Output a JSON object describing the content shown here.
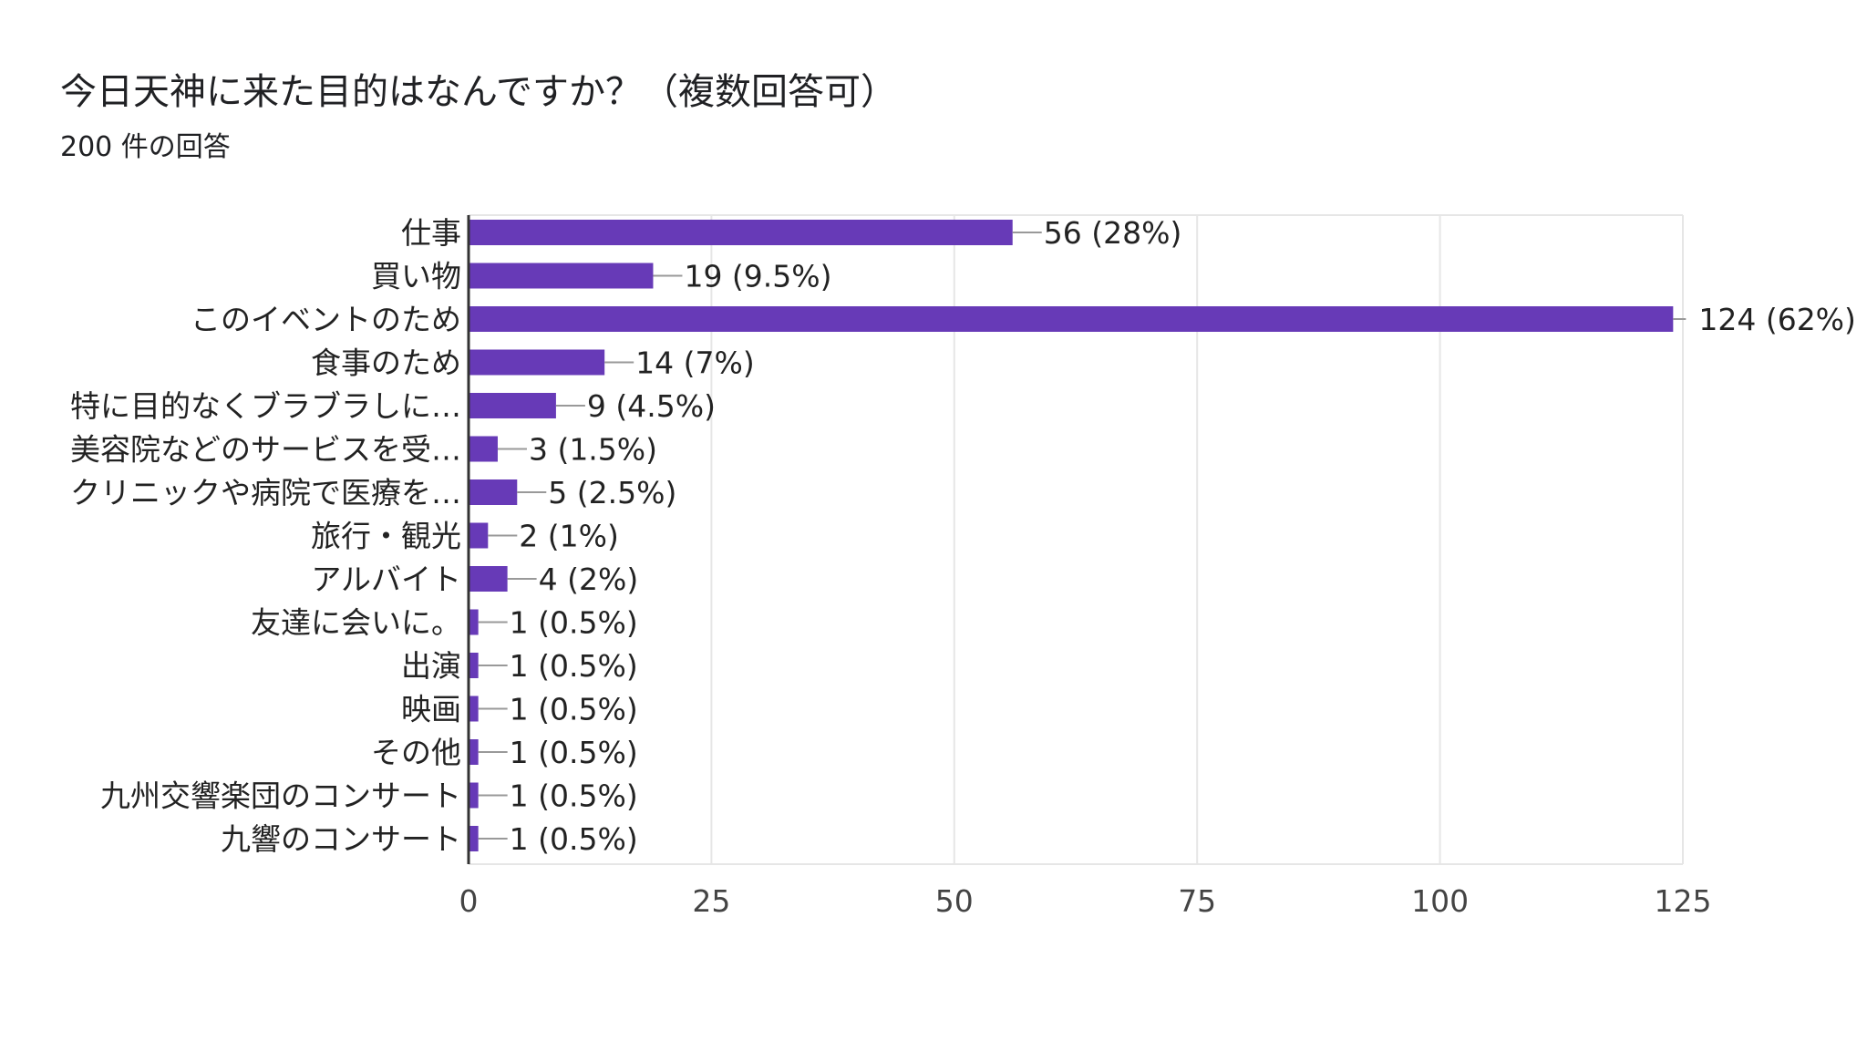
{
  "title": "今日天神に来た目的はなんですか？（複数回答可）",
  "subtitle": "200 件の回答",
  "colors": {
    "bar": "#673ab7",
    "grid": "#e6e6e6",
    "axis": "#333333",
    "leader": "#999999"
  },
  "chart_data": {
    "type": "bar",
    "orientation": "horizontal",
    "title": "今日天神に来た目的はなんですか？（複数回答可）",
    "subtitle": "200 件の回答",
    "categories": [
      "仕事",
      "買い物",
      "このイベントのため",
      "食事のため",
      "特に目的なくブラブラしに…",
      "美容院などのサービスを受…",
      "クリニックや病院で医療を…",
      "旅行・観光",
      "アルバイト",
      "友達に会いに。",
      "出演",
      "映画",
      "その他",
      "九州交響楽団のコンサート",
      "九響のコンサート"
    ],
    "values": [
      56,
      19,
      124,
      14,
      9,
      3,
      5,
      2,
      4,
      1,
      1,
      1,
      1,
      1,
      1
    ],
    "value_labels": [
      "56 (28%)",
      "19 (9.5%)",
      "124 (62%)",
      "14 (7%)",
      "9 (4.5%)",
      "3 (1.5%)",
      "5 (2.5%)",
      "2 (1%)",
      "4 (2%)",
      "1 (0.5%)",
      "1 (0.5%)",
      "1 (0.5%)",
      "1 (0.5%)",
      "1 (0.5%)",
      "1 (0.5%)"
    ],
    "xlim": [
      0,
      125
    ],
    "xticks": [
      0,
      25,
      50,
      75,
      100,
      125
    ],
    "grid": true,
    "legend": "none"
  }
}
